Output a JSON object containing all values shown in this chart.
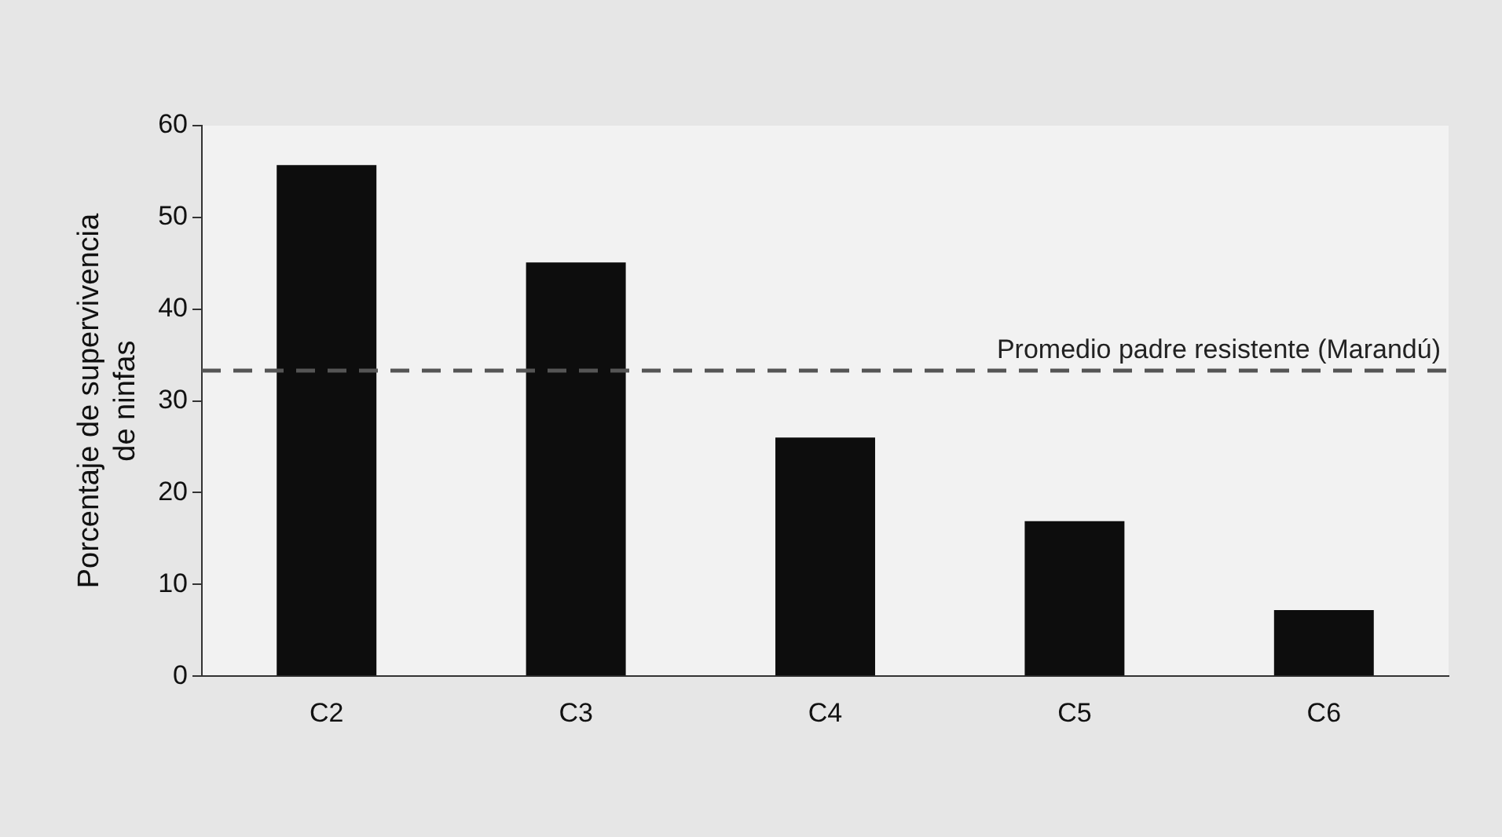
{
  "chart_data": {
    "type": "bar",
    "ylabel": "Porcentaje de supervivencia\nde ninfas",
    "categories": [
      "C2",
      "C3",
      "C4",
      "C5",
      "C6"
    ],
    "values": [
      55.7,
      45.1,
      26,
      16.9,
      7.2
    ],
    "color": "#0d0d0d",
    "ylim": [
      0,
      60
    ],
    "yticks": [
      0,
      10,
      20,
      30,
      40,
      50,
      60
    ],
    "grid": false,
    "legend": false,
    "ref_lines": [
      {
        "axis": "y",
        "value": 33.3,
        "label": "Promedio padre resistente (Marandú)",
        "color": "#555555",
        "line_style": "dashed"
      }
    ]
  }
}
